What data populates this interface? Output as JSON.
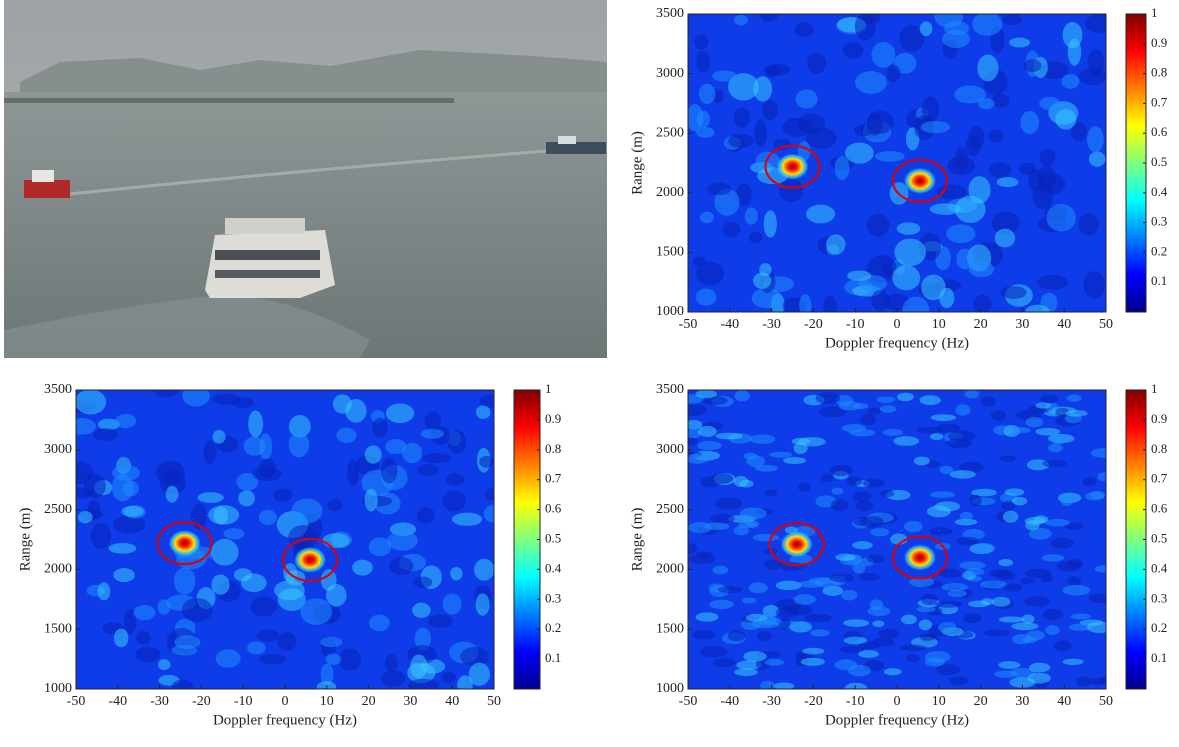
{
  "chart_data": [
    {
      "type": "heatmap",
      "xlabel": "Doppler frequency (Hz)",
      "ylabel": "Range (m)",
      "xlim": [
        -50,
        50
      ],
      "ylim": [
        1000,
        3500
      ],
      "xticks": [
        -50,
        -40,
        -30,
        -20,
        -10,
        0,
        10,
        20,
        30,
        40,
        50
      ],
      "yticks": [
        1000,
        1500,
        2000,
        2500,
        3000,
        3500
      ],
      "clim": [
        0,
        1
      ],
      "cticks": [
        0.1,
        0.2,
        0.3,
        0.4,
        0.5,
        0.6,
        0.7,
        0.8,
        0.9,
        1
      ],
      "colormap": "jet",
      "highlight_color": "#e00000",
      "targets": {
        "x": [
          -25,
          5.5
        ],
        "y": [
          2220,
          2100
        ]
      }
    },
    {
      "type": "heatmap",
      "xlabel": "Doppler frequency (Hz)",
      "ylabel": "Range (m)",
      "xlim": [
        -50,
        50
      ],
      "ylim": [
        1000,
        3500
      ],
      "xticks": [
        -50,
        -40,
        -30,
        -20,
        -10,
        0,
        10,
        20,
        30,
        40,
        50
      ],
      "yticks": [
        1000,
        1500,
        2000,
        2500,
        3000,
        3500
      ],
      "clim": [
        0,
        1
      ],
      "cticks": [
        0.1,
        0.2,
        0.3,
        0.4,
        0.5,
        0.6,
        0.7,
        0.8,
        0.9,
        1
      ],
      "colormap": "jet",
      "highlight_color": "#e00000",
      "targets": {
        "x": [
          -24,
          6
        ],
        "y": [
          2220,
          2080
        ]
      }
    },
    {
      "type": "heatmap",
      "xlabel": "Doppler frequency (Hz)",
      "ylabel": "Range (m)",
      "xlim": [
        -50,
        50
      ],
      "ylim": [
        1000,
        3500
      ],
      "xticks": [
        -50,
        -40,
        -30,
        -20,
        -10,
        0,
        10,
        20,
        30,
        40,
        50
      ],
      "yticks": [
        1000,
        1500,
        2000,
        2500,
        3000,
        3500
      ],
      "clim": [
        0,
        1
      ],
      "cticks": [
        0.1,
        0.2,
        0.3,
        0.4,
        0.5,
        0.6,
        0.7,
        0.8,
        0.9,
        1
      ],
      "colormap": "jet",
      "highlight_color": "#e00000",
      "targets": {
        "x": [
          -24,
          5.5
        ],
        "y": [
          2210,
          2100
        ]
      }
    }
  ]
}
